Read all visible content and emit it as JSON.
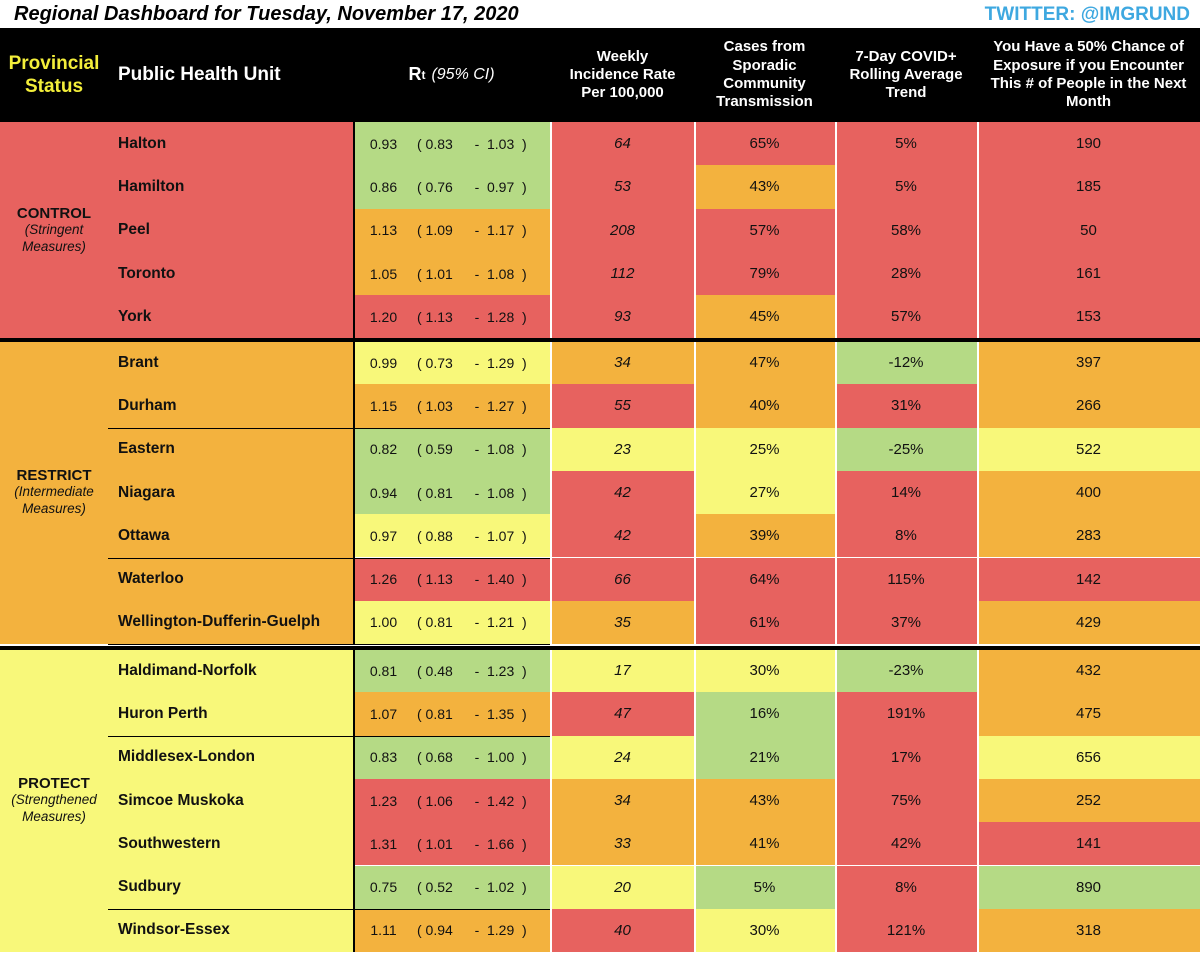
{
  "title": "Regional Dashboard for Tuesday, November 17, 2020",
  "twitter": "TWITTER: @IMGRUND",
  "colors": {
    "red": "#e7625f",
    "orange": "#f3b23e",
    "yellow": "#f8f87a",
    "green": "#b5da85",
    "header_bg": "#000000",
    "status_text": "#f3ee3a",
    "handle_text": "#3ea8e0"
  },
  "headers": {
    "status": "Provincial Status",
    "unit": "Public Health Unit",
    "rt_main": "R",
    "rt_sub": "t",
    "rt_ci": "(95% CI)",
    "incidence": "Weekly Incidence Rate Per 100,000",
    "sporadic": "Cases from Sporadic Community Transmission",
    "trend": "7-Day COVID+ Rolling Average Trend",
    "exposure": "You Have a 50% Chance of Exposure if you Encounter This # of People in the Next Month"
  },
  "chart_data": {
    "type": "table",
    "title": "Regional Dashboard for Tuesday, November 17, 2020",
    "columns": [
      "Provincial Status",
      "Public Health Unit",
      "Rt (95% CI)",
      "Weekly Incidence Rate Per 100,000",
      "Cases from Sporadic Community Transmission",
      "7-Day COVID+ Rolling Average Trend",
      "You Have a 50% Chance of Exposure if you Encounter This # of People in the Next Month"
    ],
    "groups": [
      {
        "name": "CONTROL",
        "subtitle": "(Stringent Measures)",
        "color": "red",
        "rows": [
          {
            "unit": "Halton",
            "rt": "0.93",
            "rt_lo": "0.83",
            "rt_hi": "1.03",
            "rt_color": "green",
            "incidence": "64",
            "inc_color": "red",
            "sporadic": "65%",
            "spo_color": "red",
            "trend": "5%",
            "trend_color": "red",
            "people": "190",
            "people_color": "red"
          },
          {
            "unit": "Hamilton",
            "rt": "0.86",
            "rt_lo": "0.76",
            "rt_hi": "0.97",
            "rt_color": "green",
            "incidence": "53",
            "inc_color": "red",
            "sporadic": "43%",
            "spo_color": "orange",
            "trend": "5%",
            "trend_color": "red",
            "people": "185",
            "people_color": "red"
          },
          {
            "unit": "Peel",
            "rt": "1.13",
            "rt_lo": "1.09",
            "rt_hi": "1.17",
            "rt_color": "orange",
            "incidence": "208",
            "inc_color": "red",
            "sporadic": "57%",
            "spo_color": "red",
            "trend": "58%",
            "trend_color": "red",
            "people": "50",
            "people_color": "red"
          },
          {
            "unit": "Toronto",
            "rt": "1.05",
            "rt_lo": "1.01",
            "rt_hi": "1.08",
            "rt_color": "orange",
            "incidence": "112",
            "inc_color": "red",
            "sporadic": "79%",
            "spo_color": "red",
            "trend": "28%",
            "trend_color": "red",
            "people": "161",
            "people_color": "red"
          },
          {
            "unit": "York",
            "rt": "1.20",
            "rt_lo": "1.13",
            "rt_hi": "1.28",
            "rt_color": "red",
            "incidence": "93",
            "inc_color": "red",
            "sporadic": "45%",
            "spo_color": "orange",
            "trend": "57%",
            "trend_color": "red",
            "people": "153",
            "people_color": "red"
          }
        ]
      },
      {
        "name": "RESTRICT",
        "subtitle": "(Intermediate Measures)",
        "color": "orange",
        "rows": [
          {
            "unit": "Brant",
            "rt": "0.99",
            "rt_lo": "0.73",
            "rt_hi": "1.29",
            "rt_color": "yellow",
            "incidence": "34",
            "inc_color": "orange",
            "sporadic": "47%",
            "spo_color": "orange",
            "trend": "-12%",
            "trend_color": "green",
            "people": "397",
            "people_color": "orange"
          },
          {
            "unit": "Durham",
            "rt": "1.15",
            "rt_lo": "1.03",
            "rt_hi": "1.27",
            "rt_color": "orange",
            "incidence": "55",
            "inc_color": "red",
            "sporadic": "40%",
            "spo_color": "orange",
            "trend": "31%",
            "trend_color": "red",
            "people": "266",
            "people_color": "orange"
          },
          {
            "unit": "Eastern",
            "rt": "0.82",
            "rt_lo": "0.59",
            "rt_hi": "1.08",
            "rt_color": "green",
            "incidence": "23",
            "inc_color": "yellow",
            "sporadic": "25%",
            "spo_color": "yellow",
            "trend": "-25%",
            "trend_color": "green",
            "people": "522",
            "people_color": "yellow"
          },
          {
            "unit": "Niagara",
            "rt": "0.94",
            "rt_lo": "0.81",
            "rt_hi": "1.08",
            "rt_color": "green",
            "incidence": "42",
            "inc_color": "red",
            "sporadic": "27%",
            "spo_color": "yellow",
            "trend": "14%",
            "trend_color": "red",
            "people": "400",
            "people_color": "orange"
          },
          {
            "unit": "Ottawa",
            "rt": "0.97",
            "rt_lo": "0.88",
            "rt_hi": "1.07",
            "rt_color": "yellow",
            "incidence": "42",
            "inc_color": "red",
            "sporadic": "39%",
            "spo_color": "orange",
            "trend": "8%",
            "trend_color": "red",
            "people": "283",
            "people_color": "orange"
          },
          {
            "unit": "Waterloo",
            "rt": "1.26",
            "rt_lo": "1.13",
            "rt_hi": "1.40",
            "rt_color": "red",
            "incidence": "66",
            "inc_color": "red",
            "sporadic": "64%",
            "spo_color": "red",
            "trend": "115%",
            "trend_color": "red",
            "people": "142",
            "people_color": "red"
          },
          {
            "unit": "Wellington-Dufferin-Guelph",
            "rt": "1.00",
            "rt_lo": "0.81",
            "rt_hi": "1.21",
            "rt_color": "yellow",
            "incidence": "35",
            "inc_color": "orange",
            "sporadic": "61%",
            "spo_color": "red",
            "trend": "37%",
            "trend_color": "red",
            "people": "429",
            "people_color": "orange"
          }
        ]
      },
      {
        "name": "PROTECT",
        "subtitle": "(Strengthened Measures)",
        "color": "yellow",
        "rows": [
          {
            "unit": "Haldimand-Norfolk",
            "rt": "0.81",
            "rt_lo": "0.48",
            "rt_hi": "1.23",
            "rt_color": "green",
            "incidence": "17",
            "inc_color": "yellow",
            "sporadic": "30%",
            "spo_color": "yellow",
            "trend": "-23%",
            "trend_color": "green",
            "people": "432",
            "people_color": "orange"
          },
          {
            "unit": "Huron Perth",
            "rt": "1.07",
            "rt_lo": "0.81",
            "rt_hi": "1.35",
            "rt_color": "orange",
            "incidence": "47",
            "inc_color": "red",
            "sporadic": "16%",
            "spo_color": "green",
            "trend": "191%",
            "trend_color": "red",
            "people": "475",
            "people_color": "orange"
          },
          {
            "unit": "Middlesex-London",
            "rt": "0.83",
            "rt_lo": "0.68",
            "rt_hi": "1.00",
            "rt_color": "green",
            "incidence": "24",
            "inc_color": "yellow",
            "sporadic": "21%",
            "spo_color": "green",
            "trend": "17%",
            "trend_color": "red",
            "people": "656",
            "people_color": "yellow"
          },
          {
            "unit": "Simcoe Muskoka",
            "rt": "1.23",
            "rt_lo": "1.06",
            "rt_hi": "1.42",
            "rt_color": "red",
            "incidence": "34",
            "inc_color": "orange",
            "sporadic": "43%",
            "spo_color": "orange",
            "trend": "75%",
            "trend_color": "red",
            "people": "252",
            "people_color": "orange"
          },
          {
            "unit": "Southwestern",
            "rt": "1.31",
            "rt_lo": "1.01",
            "rt_hi": "1.66",
            "rt_color": "red",
            "incidence": "33",
            "inc_color": "orange",
            "sporadic": "41%",
            "spo_color": "orange",
            "trend": "42%",
            "trend_color": "red",
            "people": "141",
            "people_color": "red"
          },
          {
            "unit": "Sudbury",
            "rt": "0.75",
            "rt_lo": "0.52",
            "rt_hi": "1.02",
            "rt_color": "green",
            "incidence": "20",
            "inc_color": "yellow",
            "sporadic": "5%",
            "spo_color": "green",
            "trend": "8%",
            "trend_color": "red",
            "people": "890",
            "people_color": "green"
          },
          {
            "unit": "Windsor-Essex",
            "rt": "1.11",
            "rt_lo": "0.94",
            "rt_hi": "1.29",
            "rt_color": "orange",
            "incidence": "40",
            "inc_color": "red",
            "sporadic": "30%",
            "spo_color": "yellow",
            "trend": "121%",
            "trend_color": "red",
            "people": "318",
            "people_color": "orange"
          }
        ]
      }
    ]
  }
}
